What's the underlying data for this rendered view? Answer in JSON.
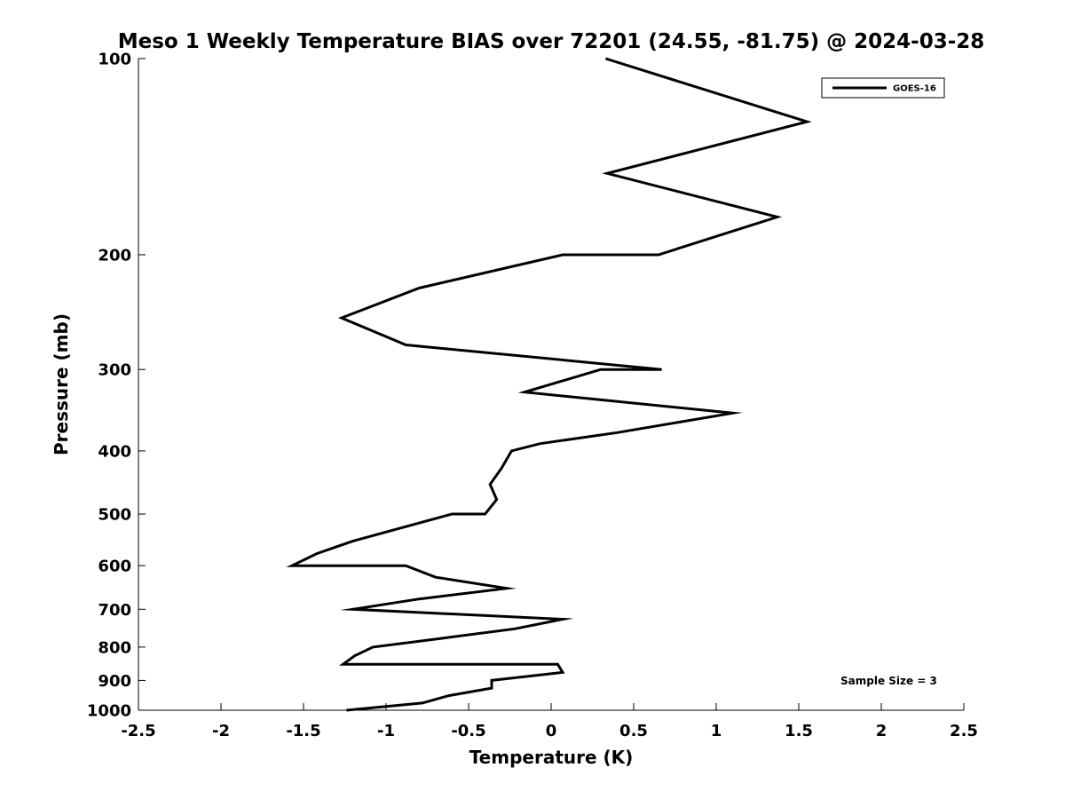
{
  "chart_data": {
    "type": "line",
    "title": "Meso 1 Weekly Temperature BIAS over 72201 (24.55, -81.75) @ 2024-03-28",
    "xlabel": "Temperature (K)",
    "ylabel": "Pressure (mb)",
    "xlim": [
      -2.5,
      2.5
    ],
    "ylim": [
      100,
      1000
    ],
    "yscale": "log",
    "yreversed": true,
    "grid": false,
    "xticks": [
      -2.5,
      -2,
      -1.5,
      -1,
      -0.5,
      0,
      0.5,
      1,
      1.5,
      2,
      2.5
    ],
    "xtick_labels": [
      "-2.5",
      "-2",
      "-1.5",
      "-1",
      "-0.5",
      "0",
      "0.5",
      "1",
      "1.5",
      "2",
      "2.5"
    ],
    "yticks": [
      100,
      200,
      300,
      400,
      500,
      600,
      700,
      800,
      900,
      1000
    ],
    "ytick_labels": [
      "100",
      "200",
      "300",
      "400",
      "500",
      "600",
      "700",
      "800",
      "900",
      "1000"
    ],
    "legend_position": "top-right",
    "series": [
      {
        "name": "GOES-16",
        "color": "#000000",
        "points": [
          {
            "t": 0.33,
            "p": 100
          },
          {
            "t": 1.55,
            "p": 125
          },
          {
            "t": 0.34,
            "p": 150
          },
          {
            "t": 1.37,
            "p": 175
          },
          {
            "t": 0.65,
            "p": 200
          },
          {
            "t": 0.07,
            "p": 200
          },
          {
            "t": -0.8,
            "p": 225
          },
          {
            "t": -1.27,
            "p": 250
          },
          {
            "t": -0.88,
            "p": 275
          },
          {
            "t": 0.67,
            "p": 300
          },
          {
            "t": 0.3,
            "p": 300
          },
          {
            "t": -0.16,
            "p": 325
          },
          {
            "t": 1.1,
            "p": 350
          },
          {
            "t": 0.4,
            "p": 375
          },
          {
            "t": -0.07,
            "p": 390
          },
          {
            "t": -0.24,
            "p": 400
          },
          {
            "t": -0.3,
            "p": 425
          },
          {
            "t": -0.37,
            "p": 450
          },
          {
            "t": -0.33,
            "p": 475
          },
          {
            "t": -0.4,
            "p": 500
          },
          {
            "t": -0.6,
            "p": 500
          },
          {
            "t": -1.2,
            "p": 550
          },
          {
            "t": -1.42,
            "p": 575
          },
          {
            "t": -1.57,
            "p": 600
          },
          {
            "t": -0.88,
            "p": 600
          },
          {
            "t": -0.7,
            "p": 625
          },
          {
            "t": -0.27,
            "p": 650
          },
          {
            "t": -0.8,
            "p": 675
          },
          {
            "t": -1.2,
            "p": 700
          },
          {
            "t": 0.07,
            "p": 725
          },
          {
            "t": -0.22,
            "p": 750
          },
          {
            "t": -0.65,
            "p": 775
          },
          {
            "t": -1.08,
            "p": 800
          },
          {
            "t": -1.19,
            "p": 825
          },
          {
            "t": -1.26,
            "p": 850
          },
          {
            "t": 0.04,
            "p": 850
          },
          {
            "t": 0.07,
            "p": 875
          },
          {
            "t": -0.36,
            "p": 900
          },
          {
            "t": -0.36,
            "p": 925
          },
          {
            "t": -0.62,
            "p": 950
          },
          {
            "t": -0.78,
            "p": 975
          },
          {
            "t": -1.24,
            "p": 1000
          }
        ]
      }
    ],
    "annotations": [
      "Sample Size = 3"
    ]
  }
}
